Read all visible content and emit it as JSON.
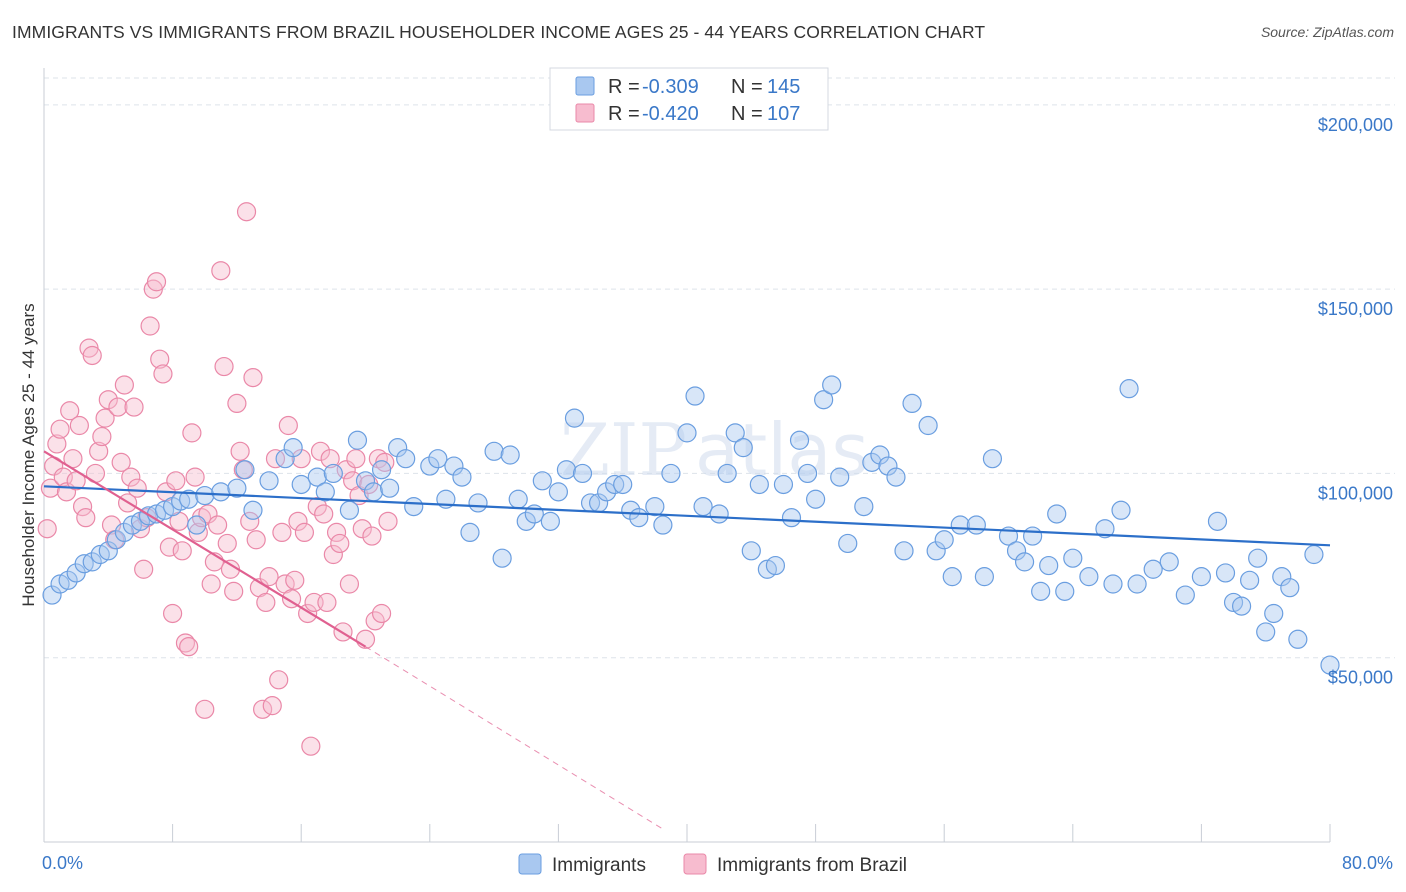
{
  "title": "IMMIGRANTS VS IMMIGRANTS FROM BRAZIL HOUSEHOLDER INCOME AGES 25 - 44 YEARS CORRELATION CHART",
  "source": "Source: ZipAtlas.com",
  "watermark": {
    "part1": "ZIP",
    "part2": "atlas"
  },
  "legend": {
    "r_label": "R =",
    "n_label": "N =",
    "rows": [
      {
        "r": "-0.309",
        "n": "145"
      },
      {
        "r": "-0.420",
        "n": "107"
      }
    ]
  },
  "colors": {
    "blue_fill": "#a9c8f0",
    "blue_stroke": "#6a9ee0",
    "blue_line": "#2c6fc9",
    "pink_fill": "#f7bccf",
    "pink_stroke": "#ea88a8",
    "pink_line": "#e06090",
    "tick_text": "#3a78c8",
    "grid": "#dde3ea"
  },
  "chart_data": {
    "type": "scatter",
    "title": "IMMIGRANTS VS IMMIGRANTS FROM BRAZIL HOUSEHOLDER INCOME AGES 25 - 44 YEARS CORRELATION CHART",
    "xlabel": "",
    "ylabel": "Householder Income Ages 25 - 44 years",
    "xlim": [
      0,
      80
    ],
    "ylim": [
      0,
      210000
    ],
    "x_tick_labels": [
      "0.0%",
      "80.0%"
    ],
    "y_ticks": [
      50000,
      100000,
      150000,
      200000
    ],
    "y_tick_labels": [
      "$50,000",
      "$100,000",
      "$150,000",
      "$200,000"
    ],
    "grid": true,
    "legend_position": "top-center",
    "series": [
      {
        "name": "Immigrants",
        "stats": {
          "r": -0.309,
          "n": 145
        },
        "trend": {
          "x": [
            0,
            80
          ],
          "y": [
            96500,
            80500
          ]
        },
        "points": [
          [
            0.5,
            67000
          ],
          [
            1.0,
            70000
          ],
          [
            1.5,
            71000
          ],
          [
            2.0,
            73000
          ],
          [
            2.5,
            75500
          ],
          [
            3.0,
            76000
          ],
          [
            3.5,
            78000
          ],
          [
            4.0,
            79000
          ],
          [
            4.5,
            82000
          ],
          [
            5.0,
            84000
          ],
          [
            5.5,
            86000
          ],
          [
            6.0,
            87000
          ],
          [
            6.5,
            88500
          ],
          [
            7.0,
            89000
          ],
          [
            7.5,
            90000
          ],
          [
            8.0,
            91000
          ],
          [
            8.5,
            92500
          ],
          [
            9.0,
            93000
          ],
          [
            9.5,
            86000
          ],
          [
            10.0,
            94000
          ],
          [
            11.0,
            95000
          ],
          [
            12.0,
            96000
          ],
          [
            12.5,
            101000
          ],
          [
            13.0,
            90000
          ],
          [
            14.0,
            98000
          ],
          [
            15.0,
            104000
          ],
          [
            15.5,
            107000
          ],
          [
            16.0,
            97000
          ],
          [
            17.0,
            99000
          ],
          [
            17.5,
            95000
          ],
          [
            18.0,
            100000
          ],
          [
            19.0,
            90000
          ],
          [
            19.5,
            109000
          ],
          [
            20.0,
            98000
          ],
          [
            20.5,
            95000
          ],
          [
            21.0,
            101000
          ],
          [
            21.5,
            96000
          ],
          [
            22.0,
            107000
          ],
          [
            22.5,
            104000
          ],
          [
            23.0,
            91000
          ],
          [
            24.0,
            102000
          ],
          [
            24.5,
            104000
          ],
          [
            25.0,
            93000
          ],
          [
            25.5,
            102000
          ],
          [
            26.0,
            99000
          ],
          [
            26.5,
            84000
          ],
          [
            27.0,
            92000
          ],
          [
            28.0,
            106000
          ],
          [
            28.5,
            77000
          ],
          [
            29.0,
            105000
          ],
          [
            29.5,
            93000
          ],
          [
            30.0,
            87000
          ],
          [
            30.5,
            89000
          ],
          [
            31.0,
            98000
          ],
          [
            31.5,
            87000
          ],
          [
            32.0,
            95000
          ],
          [
            32.5,
            101000
          ],
          [
            33.0,
            115000
          ],
          [
            33.5,
            100000
          ],
          [
            34.0,
            92000
          ],
          [
            34.5,
            92000
          ],
          [
            35.0,
            95000
          ],
          [
            35.5,
            97000
          ],
          [
            36.0,
            97000
          ],
          [
            36.5,
            90000
          ],
          [
            37.0,
            88000
          ],
          [
            38.0,
            91000
          ],
          [
            38.5,
            86000
          ],
          [
            39.0,
            100000
          ],
          [
            40.0,
            111000
          ],
          [
            40.5,
            121000
          ],
          [
            41.0,
            91000
          ],
          [
            42.0,
            89000
          ],
          [
            42.5,
            100000
          ],
          [
            43.0,
            111000
          ],
          [
            43.5,
            107000
          ],
          [
            44.0,
            79000
          ],
          [
            44.5,
            97000
          ],
          [
            45.0,
            74000
          ],
          [
            45.5,
            75000
          ],
          [
            46.0,
            97000
          ],
          [
            46.5,
            88000
          ],
          [
            47.0,
            109000
          ],
          [
            47.5,
            100000
          ],
          [
            48.0,
            93000
          ],
          [
            48.5,
            120000
          ],
          [
            49.0,
            124000
          ],
          [
            49.5,
            99000
          ],
          [
            50.0,
            81000
          ],
          [
            51.0,
            91000
          ],
          [
            51.5,
            103000
          ],
          [
            52.0,
            105000
          ],
          [
            52.5,
            102000
          ],
          [
            53.0,
            99000
          ],
          [
            53.5,
            79000
          ],
          [
            54.0,
            119000
          ],
          [
            55.0,
            113000
          ],
          [
            55.5,
            79000
          ],
          [
            56.0,
            82000
          ],
          [
            56.5,
            72000
          ],
          [
            57.0,
            86000
          ],
          [
            58.0,
            86000
          ],
          [
            58.5,
            72000
          ],
          [
            59.0,
            104000
          ],
          [
            60.0,
            83000
          ],
          [
            60.5,
            79000
          ],
          [
            61.0,
            76000
          ],
          [
            61.5,
            83000
          ],
          [
            62.0,
            68000
          ],
          [
            62.5,
            75000
          ],
          [
            63.0,
            89000
          ],
          [
            63.5,
            68000
          ],
          [
            64.0,
            77000
          ],
          [
            65.0,
            72000
          ],
          [
            66.0,
            85000
          ],
          [
            66.5,
            70000
          ],
          [
            67.0,
            90000
          ],
          [
            67.5,
            123000
          ],
          [
            68.0,
            70000
          ],
          [
            69.0,
            74000
          ],
          [
            70.0,
            76000
          ],
          [
            71.0,
            67000
          ],
          [
            72.0,
            72000
          ],
          [
            73.0,
            87000
          ],
          [
            73.5,
            73000
          ],
          [
            74.0,
            65000
          ],
          [
            74.5,
            64000
          ],
          [
            75.0,
            71000
          ],
          [
            75.5,
            77000
          ],
          [
            76.0,
            57000
          ],
          [
            76.5,
            62000
          ],
          [
            77.0,
            72000
          ],
          [
            77.5,
            69000
          ],
          [
            78.0,
            55000
          ],
          [
            79.0,
            78000
          ],
          [
            80.0,
            48000
          ]
        ]
      },
      {
        "name": "Immigrants from Brazil",
        "stats": {
          "r": -0.42,
          "n": 107
        },
        "trend": {
          "x": [
            0,
            20
          ],
          "y": [
            106000,
            53000
          ]
        },
        "trend_extension": {
          "x": [
            20,
            38.5
          ],
          "y": [
            53000,
            3500
          ]
        },
        "points": [
          [
            0.2,
            85000
          ],
          [
            0.4,
            96000
          ],
          [
            0.6,
            102000
          ],
          [
            0.8,
            108000
          ],
          [
            1.0,
            112000
          ],
          [
            1.2,
            99000
          ],
          [
            1.4,
            95000
          ],
          [
            1.6,
            117000
          ],
          [
            1.8,
            104000
          ],
          [
            2.0,
            98000
          ],
          [
            2.2,
            113000
          ],
          [
            2.4,
            91000
          ],
          [
            2.6,
            88000
          ],
          [
            2.8,
            134000
          ],
          [
            3.0,
            132000
          ],
          [
            3.2,
            100000
          ],
          [
            3.4,
            106000
          ],
          [
            3.6,
            110000
          ],
          [
            3.8,
            115000
          ],
          [
            4.0,
            120000
          ],
          [
            4.2,
            86000
          ],
          [
            4.4,
            82000
          ],
          [
            4.6,
            118000
          ],
          [
            4.8,
            103000
          ],
          [
            5.0,
            124000
          ],
          [
            5.2,
            92000
          ],
          [
            5.4,
            99000
          ],
          [
            5.6,
            118000
          ],
          [
            5.8,
            96000
          ],
          [
            6.0,
            85000
          ],
          [
            6.2,
            74000
          ],
          [
            6.4,
            88000
          ],
          [
            6.6,
            140000
          ],
          [
            6.8,
            150000
          ],
          [
            7.0,
            152000
          ],
          [
            7.2,
            131000
          ],
          [
            7.4,
            127000
          ],
          [
            7.6,
            95000
          ],
          [
            7.8,
            80000
          ],
          [
            8.0,
            62000
          ],
          [
            8.2,
            98000
          ],
          [
            8.4,
            87000
          ],
          [
            8.6,
            79000
          ],
          [
            8.8,
            54000
          ],
          [
            9.0,
            53000
          ],
          [
            9.2,
            111000
          ],
          [
            9.4,
            99000
          ],
          [
            9.6,
            84000
          ],
          [
            9.8,
            88000
          ],
          [
            10.0,
            36000
          ],
          [
            10.2,
            89000
          ],
          [
            10.4,
            70000
          ],
          [
            10.6,
            76000
          ],
          [
            10.8,
            86000
          ],
          [
            11.0,
            155000
          ],
          [
            11.2,
            129000
          ],
          [
            11.4,
            81000
          ],
          [
            11.6,
            74000
          ],
          [
            11.8,
            68000
          ],
          [
            12.0,
            119000
          ],
          [
            12.2,
            106000
          ],
          [
            12.4,
            101000
          ],
          [
            12.6,
            171000
          ],
          [
            12.8,
            87000
          ],
          [
            13.0,
            126000
          ],
          [
            13.2,
            82000
          ],
          [
            13.4,
            69000
          ],
          [
            13.6,
            36000
          ],
          [
            13.8,
            65000
          ],
          [
            14.0,
            72000
          ],
          [
            14.2,
            37000
          ],
          [
            14.4,
            104000
          ],
          [
            14.6,
            44000
          ],
          [
            14.8,
            84000
          ],
          [
            15.0,
            70000
          ],
          [
            15.2,
            113000
          ],
          [
            15.4,
            66000
          ],
          [
            15.6,
            71000
          ],
          [
            15.8,
            87000
          ],
          [
            16.0,
            104000
          ],
          [
            16.2,
            84000
          ],
          [
            16.4,
            62000
          ],
          [
            16.6,
            26000
          ],
          [
            16.8,
            65000
          ],
          [
            17.0,
            91000
          ],
          [
            17.2,
            106000
          ],
          [
            17.4,
            89000
          ],
          [
            17.6,
            65000
          ],
          [
            17.8,
            104000
          ],
          [
            18.0,
            78000
          ],
          [
            18.2,
            84000
          ],
          [
            18.4,
            81000
          ],
          [
            18.6,
            57000
          ],
          [
            18.8,
            101000
          ],
          [
            19.0,
            70000
          ],
          [
            19.2,
            98000
          ],
          [
            19.4,
            104000
          ],
          [
            19.6,
            94000
          ],
          [
            19.8,
            85000
          ],
          [
            20.0,
            55000
          ],
          [
            20.2,
            97000
          ],
          [
            20.4,
            83000
          ],
          [
            20.6,
            60000
          ],
          [
            20.8,
            104000
          ],
          [
            21.0,
            62000
          ],
          [
            21.2,
            103000
          ],
          [
            21.4,
            87000
          ]
        ]
      }
    ]
  },
  "bottom_legend": [
    "Immigrants",
    "Immigrants from Brazil"
  ]
}
